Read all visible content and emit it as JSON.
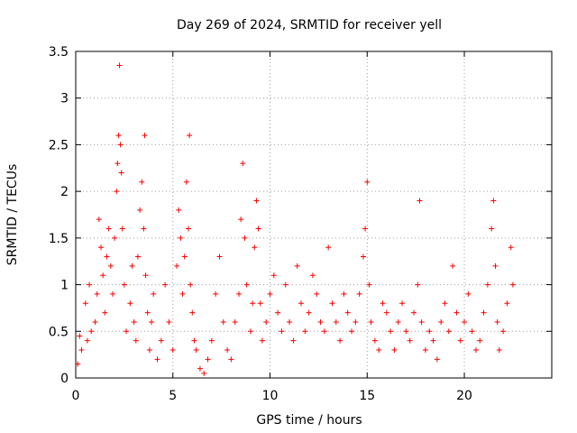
{
  "chart_data": {
    "type": "scatter",
    "title": "Day 269 of 2024, SRMTID for receiver yell",
    "xlabel": "GPS time / hours",
    "ylabel": "SRMTID / TECUs",
    "xlim": [
      0,
      24.5
    ],
    "ylim": [
      0,
      3.5
    ],
    "xticks": [
      0,
      5,
      10,
      15,
      20
    ],
    "xtick_labels": [
      "0",
      "5",
      "10",
      "15",
      "20"
    ],
    "yticks": [
      0,
      0.5,
      1,
      1.5,
      2,
      2.5,
      3,
      3.5
    ],
    "ytick_labels": [
      "0",
      "0.5",
      "1",
      "1.5",
      "2",
      "2.5",
      "3",
      "3.5"
    ],
    "grid": true,
    "marker": "+",
    "series": [
      {
        "name": "SRMTID",
        "color": "#ff0000",
        "x": [
          0.1,
          0.2,
          0.3,
          0.5,
          0.6,
          0.7,
          0.8,
          1.0,
          1.1,
          1.2,
          1.3,
          1.4,
          1.5,
          1.6,
          1.7,
          1.8,
          1.9,
          2.0,
          2.1,
          2.15,
          2.2,
          2.25,
          2.3,
          2.35,
          2.4,
          2.5,
          2.6,
          2.8,
          2.9,
          3.0,
          3.1,
          3.2,
          3.3,
          3.4,
          3.5,
          3.55,
          3.6,
          3.7,
          3.8,
          3.9,
          4.0,
          4.2,
          4.4,
          4.6,
          4.8,
          5.0,
          5.2,
          5.3,
          5.4,
          5.5,
          5.6,
          5.7,
          5.8,
          5.85,
          5.9,
          6.0,
          6.1,
          6.2,
          6.4,
          6.6,
          6.8,
          7.0,
          7.2,
          7.4,
          7.6,
          7.8,
          8.0,
          8.2,
          8.4,
          8.5,
          8.6,
          8.7,
          8.8,
          9.0,
          9.1,
          9.2,
          9.3,
          9.4,
          9.5,
          9.6,
          9.8,
          10.0,
          10.2,
          10.4,
          10.6,
          10.8,
          11.0,
          11.2,
          11.4,
          11.6,
          11.8,
          12.0,
          12.2,
          12.4,
          12.6,
          12.8,
          13.0,
          13.2,
          13.4,
          13.6,
          13.8,
          14.0,
          14.2,
          14.4,
          14.6,
          14.8,
          14.9,
          15.0,
          15.1,
          15.2,
          15.4,
          15.6,
          15.8,
          16.0,
          16.2,
          16.4,
          16.6,
          16.8,
          17.0,
          17.2,
          17.4,
          17.6,
          17.7,
          17.8,
          18.0,
          18.2,
          18.4,
          18.6,
          18.8,
          19.0,
          19.2,
          19.4,
          19.6,
          19.8,
          20.0,
          20.2,
          20.4,
          20.6,
          20.8,
          21.0,
          21.2,
          21.4,
          21.5,
          21.6,
          21.7,
          21.8,
          22.0,
          22.2,
          22.4,
          22.5
        ],
        "y": [
          0.15,
          0.45,
          0.3,
          0.8,
          0.4,
          1.0,
          0.5,
          0.6,
          0.9,
          1.7,
          1.4,
          1.1,
          0.7,
          1.3,
          1.6,
          1.2,
          0.9,
          1.5,
          2.0,
          2.3,
          2.6,
          3.35,
          2.5,
          2.2,
          1.6,
          1.0,
          0.5,
          0.8,
          1.2,
          0.6,
          0.4,
          1.3,
          1.8,
          2.1,
          1.6,
          2.6,
          1.1,
          0.7,
          0.3,
          0.6,
          0.9,
          0.2,
          0.4,
          1.0,
          0.6,
          0.3,
          1.2,
          1.8,
          1.5,
          0.9,
          1.3,
          2.1,
          1.6,
          2.6,
          1.0,
          0.7,
          0.4,
          0.3,
          0.1,
          0.05,
          0.2,
          0.4,
          0.9,
          1.3,
          0.6,
          0.3,
          0.2,
          0.6,
          0.9,
          1.7,
          2.3,
          1.5,
          1.0,
          0.5,
          0.8,
          1.4,
          1.9,
          1.6,
          0.8,
          0.4,
          0.6,
          0.9,
          1.1,
          0.7,
          0.5,
          1.0,
          0.6,
          0.4,
          1.2,
          0.8,
          0.5,
          0.7,
          1.1,
          0.9,
          0.6,
          0.5,
          1.4,
          0.8,
          0.6,
          0.4,
          0.9,
          0.7,
          0.5,
          0.6,
          0.9,
          1.3,
          1.6,
          2.1,
          1.0,
          0.6,
          0.4,
          0.3,
          0.8,
          0.7,
          0.5,
          0.3,
          0.6,
          0.8,
          0.5,
          0.4,
          0.7,
          1.0,
          1.9,
          0.6,
          0.3,
          0.5,
          0.4,
          0.2,
          0.6,
          0.8,
          0.5,
          1.2,
          0.7,
          0.4,
          0.6,
          0.9,
          0.5,
          0.3,
          0.4,
          0.7,
          1.0,
          1.6,
          1.9,
          1.2,
          0.6,
          0.3,
          0.5,
          0.8,
          1.4,
          1.0
        ]
      }
    ]
  }
}
